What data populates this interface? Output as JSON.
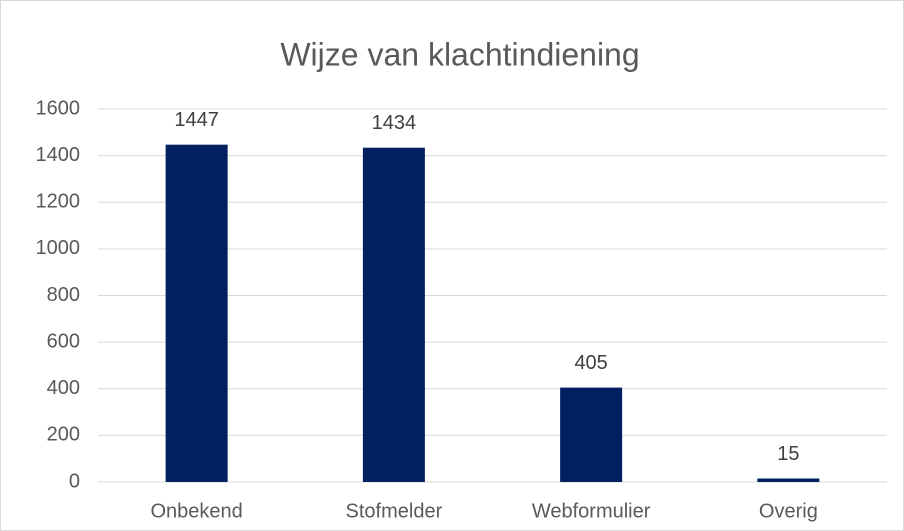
{
  "chart_data": {
    "type": "bar",
    "title": "Wijze van klachtindiening",
    "categories": [
      "Onbekend",
      "Stofmelder",
      "Webformulier",
      "Overig"
    ],
    "values": [
      1447,
      1434,
      405,
      15
    ],
    "color": "#002060",
    "ylim": [
      0,
      1600
    ],
    "yticks": [
      0,
      200,
      400,
      600,
      800,
      1000,
      1200,
      1400,
      1600
    ],
    "grid": true
  }
}
